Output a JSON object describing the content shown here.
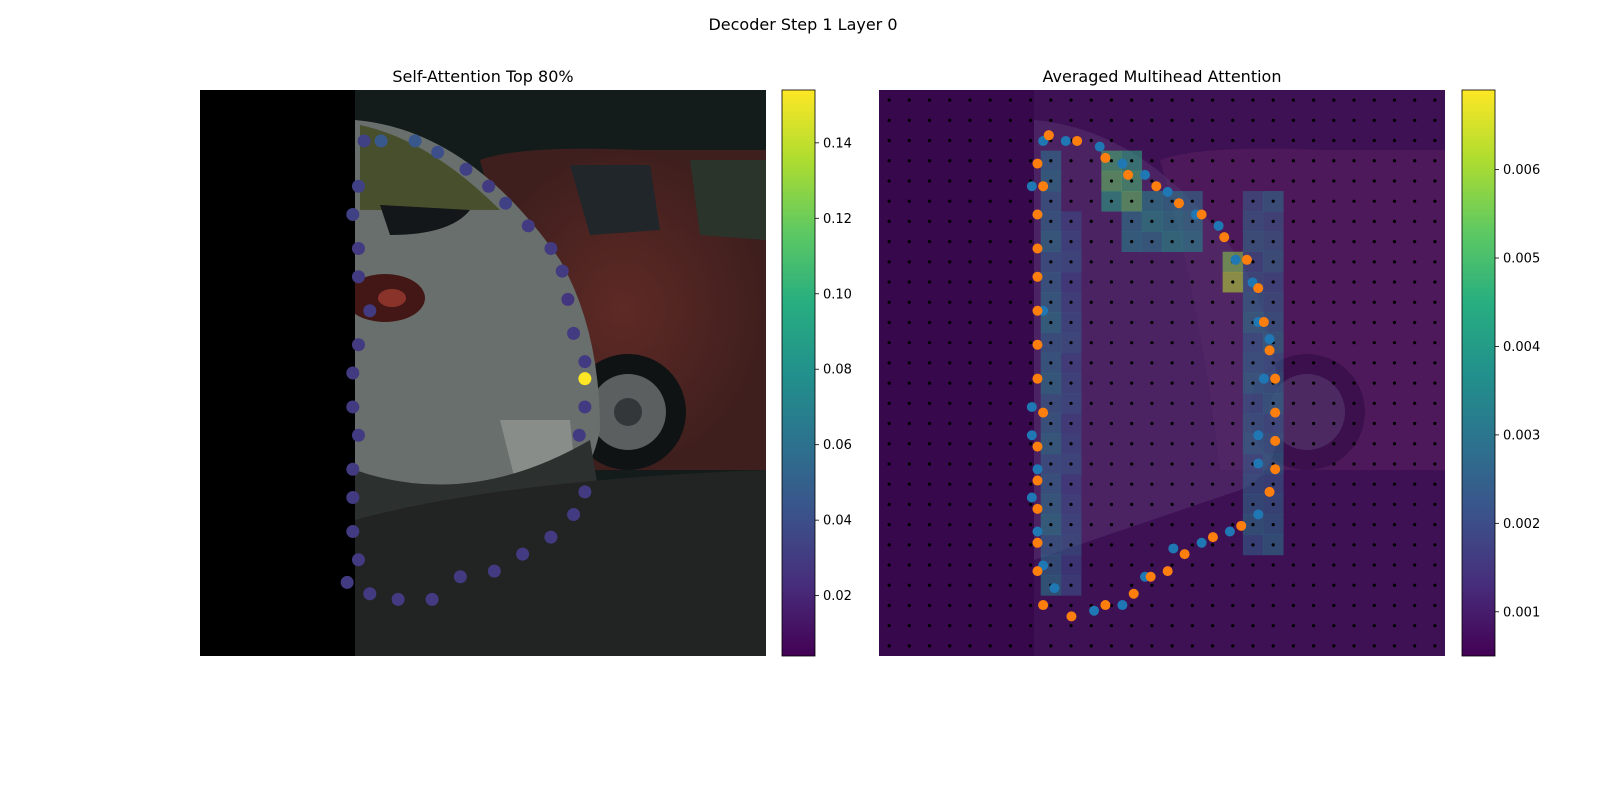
{
  "figure": {
    "suptitle": "Decoder Step 1 Layer 0"
  },
  "chart_data": [
    {
      "type": "scatter",
      "title": "Self-Attention Top 80%",
      "background": "photo: rear of a silver hatchback with a red car parked behind it; left part of frame black (padding)",
      "colormap": "viridis",
      "colorbar": {
        "vmin": 0.004,
        "vmax": 0.154,
        "ticks": [
          0.02,
          0.04,
          0.06,
          0.08,
          0.1,
          0.12,
          0.14
        ],
        "tick_labels": [
          "0.02",
          "0.04",
          "0.06",
          "0.08",
          "0.10",
          "0.12",
          "0.14"
        ]
      },
      "xlim": [
        0,
        1
      ],
      "ylim": [
        0,
        1
      ],
      "grid": false,
      "points": [
        {
          "x": 0.29,
          "y": 0.91,
          "v": 0.033
        },
        {
          "x": 0.32,
          "y": 0.91,
          "v": 0.045
        },
        {
          "x": 0.38,
          "y": 0.91,
          "v": 0.045
        },
        {
          "x": 0.42,
          "y": 0.89,
          "v": 0.04
        },
        {
          "x": 0.47,
          "y": 0.86,
          "v": 0.033
        },
        {
          "x": 0.51,
          "y": 0.83,
          "v": 0.03
        },
        {
          "x": 0.54,
          "y": 0.8,
          "v": 0.033
        },
        {
          "x": 0.58,
          "y": 0.76,
          "v": 0.03
        },
        {
          "x": 0.62,
          "y": 0.72,
          "v": 0.03
        },
        {
          "x": 0.64,
          "y": 0.68,
          "v": 0.03
        },
        {
          "x": 0.65,
          "y": 0.63,
          "v": 0.027
        },
        {
          "x": 0.66,
          "y": 0.57,
          "v": 0.03
        },
        {
          "x": 0.68,
          "y": 0.52,
          "v": 0.03
        },
        {
          "x": 0.68,
          "y": 0.49,
          "v": 0.154
        },
        {
          "x": 0.68,
          "y": 0.44,
          "v": 0.03
        },
        {
          "x": 0.67,
          "y": 0.39,
          "v": 0.03
        },
        {
          "x": 0.68,
          "y": 0.29,
          "v": 0.03
        },
        {
          "x": 0.66,
          "y": 0.25,
          "v": 0.03
        },
        {
          "x": 0.62,
          "y": 0.21,
          "v": 0.03
        },
        {
          "x": 0.57,
          "y": 0.18,
          "v": 0.03
        },
        {
          "x": 0.52,
          "y": 0.15,
          "v": 0.03
        },
        {
          "x": 0.46,
          "y": 0.14,
          "v": 0.03
        },
        {
          "x": 0.41,
          "y": 0.1,
          "v": 0.03
        },
        {
          "x": 0.35,
          "y": 0.1,
          "v": 0.03
        },
        {
          "x": 0.3,
          "y": 0.11,
          "v": 0.03
        },
        {
          "x": 0.26,
          "y": 0.13,
          "v": 0.03
        },
        {
          "x": 0.28,
          "y": 0.17,
          "v": 0.03
        },
        {
          "x": 0.27,
          "y": 0.22,
          "v": 0.03
        },
        {
          "x": 0.27,
          "y": 0.28,
          "v": 0.03
        },
        {
          "x": 0.27,
          "y": 0.33,
          "v": 0.03
        },
        {
          "x": 0.28,
          "y": 0.39,
          "v": 0.03
        },
        {
          "x": 0.27,
          "y": 0.44,
          "v": 0.03
        },
        {
          "x": 0.27,
          "y": 0.5,
          "v": 0.03
        },
        {
          "x": 0.28,
          "y": 0.55,
          "v": 0.03
        },
        {
          "x": 0.3,
          "y": 0.61,
          "v": 0.03
        },
        {
          "x": 0.28,
          "y": 0.67,
          "v": 0.03
        },
        {
          "x": 0.28,
          "y": 0.72,
          "v": 0.03
        },
        {
          "x": 0.27,
          "y": 0.78,
          "v": 0.033
        },
        {
          "x": 0.28,
          "y": 0.83,
          "v": 0.033
        }
      ]
    },
    {
      "type": "heatmap",
      "title": "Averaged Multihead Attention",
      "background": "same photo, darkened, overlaid with a 28x28 attention grid and black reference-point dots",
      "colormap": "viridis",
      "colorbar": {
        "vmin": 0.0005,
        "vmax": 0.0069,
        "ticks": [
          0.001,
          0.002,
          0.003,
          0.004,
          0.005,
          0.006
        ],
        "tick_labels": [
          "0.001",
          "0.002",
          "0.003",
          "0.004",
          "0.005",
          "0.006"
        ]
      },
      "grid_size": 28,
      "hotspots": [
        {
          "cx": 0.285,
          "cy": 0.5,
          "w": 0.05,
          "h": 0.78,
          "v": 0.0035
        },
        {
          "cx": 0.355,
          "cy": 0.55,
          "w": 0.04,
          "h": 0.65,
          "v": 0.0026
        },
        {
          "cx": 0.67,
          "cy": 0.5,
          "w": 0.06,
          "h": 0.65,
          "v": 0.0032
        },
        {
          "cx": 0.63,
          "cy": 0.32,
          "w": 0.04,
          "h": 0.06,
          "v": 0.0069
        },
        {
          "cx": 0.42,
          "cy": 0.16,
          "w": 0.08,
          "h": 0.1,
          "v": 0.0055
        },
        {
          "cx": 0.5,
          "cy": 0.22,
          "w": 0.12,
          "h": 0.1,
          "v": 0.004
        },
        {
          "cx": 0.27,
          "cy": 0.18,
          "w": 0.03,
          "h": 0.08,
          "v": 0.0055
        }
      ],
      "series": [
        {
          "color": "#1f77b4",
          "points": [
            {
              "x": 0.29,
              "y": 0.91
            },
            {
              "x": 0.33,
              "y": 0.91
            },
            {
              "x": 0.39,
              "y": 0.9
            },
            {
              "x": 0.43,
              "y": 0.87
            },
            {
              "x": 0.47,
              "y": 0.85
            },
            {
              "x": 0.51,
              "y": 0.82
            },
            {
              "x": 0.56,
              "y": 0.78
            },
            {
              "x": 0.6,
              "y": 0.76
            },
            {
              "x": 0.63,
              "y": 0.7
            },
            {
              "x": 0.66,
              "y": 0.66
            },
            {
              "x": 0.67,
              "y": 0.59
            },
            {
              "x": 0.69,
              "y": 0.56
            },
            {
              "x": 0.68,
              "y": 0.49
            },
            {
              "x": 0.67,
              "y": 0.39
            },
            {
              "x": 0.67,
              "y": 0.34
            },
            {
              "x": 0.67,
              "y": 0.25
            },
            {
              "x": 0.62,
              "y": 0.22
            },
            {
              "x": 0.57,
              "y": 0.2
            },
            {
              "x": 0.52,
              "y": 0.19
            },
            {
              "x": 0.47,
              "y": 0.14
            },
            {
              "x": 0.43,
              "y": 0.09
            },
            {
              "x": 0.38,
              "y": 0.08
            },
            {
              "x": 0.31,
              "y": 0.12
            },
            {
              "x": 0.29,
              "y": 0.16
            },
            {
              "x": 0.28,
              "y": 0.22
            },
            {
              "x": 0.27,
              "y": 0.28
            },
            {
              "x": 0.28,
              "y": 0.33
            },
            {
              "x": 0.27,
              "y": 0.39
            },
            {
              "x": 0.27,
              "y": 0.44
            },
            {
              "x": 0.29,
              "y": 0.61
            },
            {
              "x": 0.28,
              "y": 0.78
            },
            {
              "x": 0.27,
              "y": 0.83
            }
          ]
        },
        {
          "color": "#ff7f0e",
          "points": [
            {
              "x": 0.3,
              "y": 0.92
            },
            {
              "x": 0.35,
              "y": 0.91
            },
            {
              "x": 0.4,
              "y": 0.88
            },
            {
              "x": 0.44,
              "y": 0.85
            },
            {
              "x": 0.49,
              "y": 0.83
            },
            {
              "x": 0.53,
              "y": 0.8
            },
            {
              "x": 0.57,
              "y": 0.78
            },
            {
              "x": 0.61,
              "y": 0.74
            },
            {
              "x": 0.65,
              "y": 0.7
            },
            {
              "x": 0.67,
              "y": 0.65
            },
            {
              "x": 0.68,
              "y": 0.59
            },
            {
              "x": 0.69,
              "y": 0.54
            },
            {
              "x": 0.7,
              "y": 0.49
            },
            {
              "x": 0.7,
              "y": 0.43
            },
            {
              "x": 0.7,
              "y": 0.38
            },
            {
              "x": 0.7,
              "y": 0.33
            },
            {
              "x": 0.69,
              "y": 0.29
            },
            {
              "x": 0.64,
              "y": 0.23
            },
            {
              "x": 0.59,
              "y": 0.21
            },
            {
              "x": 0.54,
              "y": 0.18
            },
            {
              "x": 0.51,
              "y": 0.15
            },
            {
              "x": 0.48,
              "y": 0.14
            },
            {
              "x": 0.45,
              "y": 0.11
            },
            {
              "x": 0.4,
              "y": 0.09
            },
            {
              "x": 0.34,
              "y": 0.07
            },
            {
              "x": 0.29,
              "y": 0.09
            },
            {
              "x": 0.28,
              "y": 0.15
            },
            {
              "x": 0.28,
              "y": 0.2
            },
            {
              "x": 0.28,
              "y": 0.26
            },
            {
              "x": 0.28,
              "y": 0.31
            },
            {
              "x": 0.28,
              "y": 0.37
            },
            {
              "x": 0.29,
              "y": 0.43
            },
            {
              "x": 0.28,
              "y": 0.49
            },
            {
              "x": 0.28,
              "y": 0.55
            },
            {
              "x": 0.28,
              "y": 0.61
            },
            {
              "x": 0.28,
              "y": 0.67
            },
            {
              "x": 0.28,
              "y": 0.72
            },
            {
              "x": 0.28,
              "y": 0.78
            },
            {
              "x": 0.29,
              "y": 0.83
            },
            {
              "x": 0.28,
              "y": 0.87
            },
            {
              "x": 0.3,
              "y": 0.92
            }
          ]
        }
      ]
    }
  ],
  "colors": {
    "blue_series": "#1f77b4",
    "orange_series": "#ff7f0e",
    "grid_dot": "#000000"
  }
}
